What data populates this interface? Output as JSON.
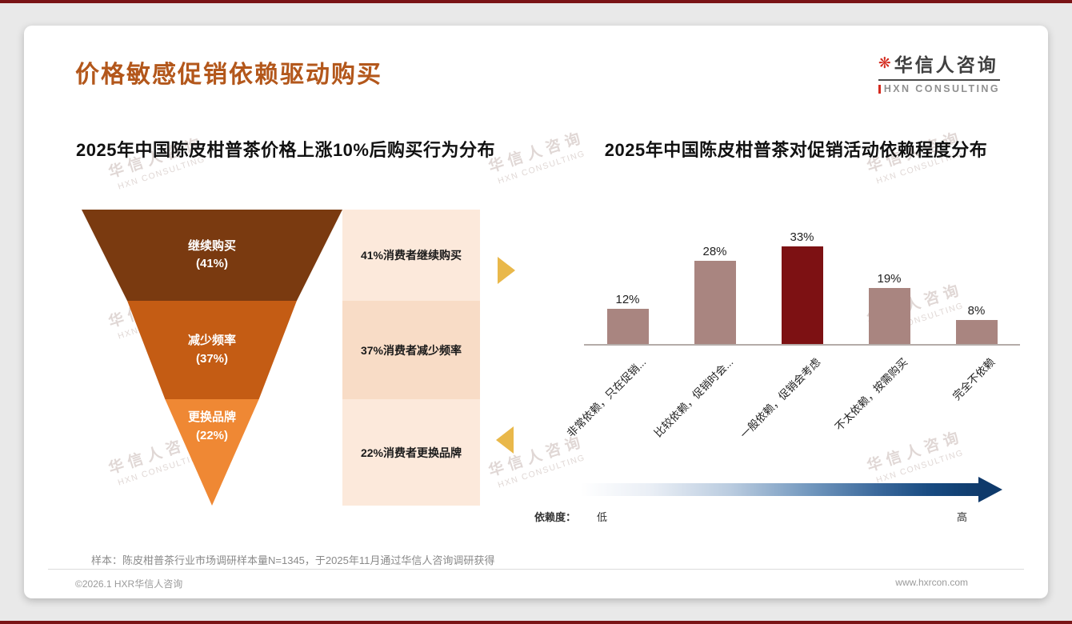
{
  "header": {
    "title": "价格敏感促销依赖驱动购买",
    "logo": {
      "icon": "❋",
      "cn": "华信人咨询",
      "en": "HXN CONSULTING"
    }
  },
  "watermark": {
    "cn": "华信人咨询",
    "en": "HXN CONSULTING"
  },
  "chart_data": [
    {
      "type": "funnel",
      "title": "2025年中国陈皮柑普茶价格上涨10%后购买行为分布",
      "categories": [
        "继续购买",
        "减少频率",
        "更换品牌"
      ],
      "values": [
        41,
        37,
        22
      ],
      "value_labels": [
        "(41%)",
        "(37%)",
        "(22%)"
      ],
      "annotations": [
        "41%消费者继续购买",
        "37%消费者减少频率",
        "22%消费者更换品牌"
      ],
      "colors": [
        "#7a3a10",
        "#c45c14",
        "#ef8834"
      ],
      "annotation_bg": [
        "#fce9db",
        "#f8dcc6",
        "#fce9db"
      ]
    },
    {
      "type": "bar",
      "title": "2025年中国陈皮柑普茶对促销活动依赖程度分布",
      "categories": [
        "非常依赖，只在促销...",
        "比较依赖，促销时会...",
        "一般依赖，促销会考虑",
        "不太依赖，按需购买",
        "完全不依赖"
      ],
      "values": [
        12,
        28,
        33,
        19,
        8
      ],
      "value_labels": [
        "12%",
        "28%",
        "33%",
        "19%",
        "8%"
      ],
      "bar_color": "#a98580",
      "highlight_index": 2,
      "highlight_color": "#7d1113",
      "ylim": [
        0,
        40
      ],
      "grid": false,
      "axis": {
        "legend_label": "依赖度：",
        "low": "低",
        "high": "高"
      }
    }
  ],
  "footnote": "样本：陈皮柑普茶行业市场调研样本量N=1345，于2025年11月通过华信人咨询调研获得",
  "footer": {
    "copyright": "©2026.1 HXR华信人咨询",
    "website": "www.hxrcon.com"
  }
}
